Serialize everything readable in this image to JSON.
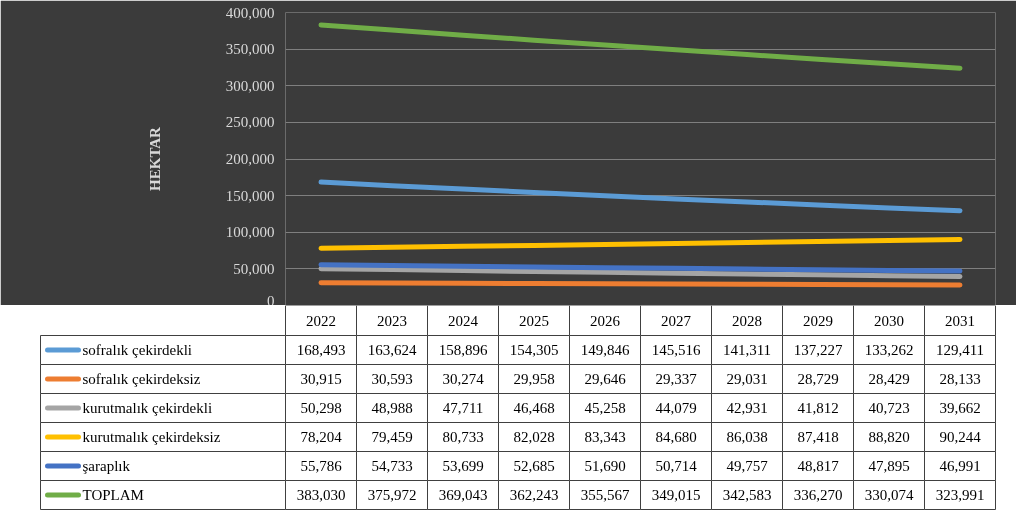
{
  "chart_data": {
    "type": "line",
    "ylabel": "HEKTAR",
    "categories": [
      "2022",
      "2023",
      "2024",
      "2025",
      "2026",
      "2027",
      "2028",
      "2029",
      "2030",
      "2031"
    ],
    "value_labels": [
      [
        "168,493",
        "163,624",
        "158,896",
        "154,305",
        "149,846",
        "145,516",
        "141,311",
        "137,227",
        "133,262",
        "129,411"
      ],
      [
        "30,915",
        "30,593",
        "30,274",
        "29,958",
        "29,646",
        "29,337",
        "29,031",
        "28,729",
        "28,429",
        "28,133"
      ],
      [
        "50,298",
        "48,988",
        "47,711",
        "46,468",
        "45,258",
        "44,079",
        "42,931",
        "41,812",
        "40,723",
        "39,662"
      ],
      [
        "78,204",
        "79,459",
        "80,733",
        "82,028",
        "83,343",
        "84,680",
        "86,038",
        "87,418",
        "88,820",
        "90,244"
      ],
      [
        "55,786",
        "54,733",
        "53,699",
        "52,685",
        "51,690",
        "50,714",
        "49,757",
        "48,817",
        "47,895",
        "46,991"
      ],
      [
        "383,030",
        "375,972",
        "369,043",
        "362,243",
        "355,567",
        "349,015",
        "342,583",
        "336,270",
        "330,074",
        "323,991"
      ]
    ],
    "series": [
      {
        "name": "sofralık çekirdekli",
        "color": "#5b9bd5",
        "values": [
          168493,
          163624,
          158896,
          154305,
          149846,
          145516,
          141311,
          137227,
          133262,
          129411
        ]
      },
      {
        "name": "sofralık çekirdeksiz",
        "color": "#ed7d31",
        "values": [
          30915,
          30593,
          30274,
          29958,
          29646,
          29337,
          29031,
          28729,
          28429,
          28133
        ]
      },
      {
        "name": "kurutmalık çekirdekli",
        "color": "#a5a5a5",
        "values": [
          50298,
          48988,
          47711,
          46468,
          45258,
          44079,
          42931,
          41812,
          40723,
          39662
        ]
      },
      {
        "name": "kurutmalık çekirdeksiz",
        "color": "#ffc000",
        "values": [
          78204,
          79459,
          80733,
          82028,
          83343,
          84680,
          86038,
          87418,
          88820,
          90244
        ]
      },
      {
        "name": "şaraplık",
        "color": "#4472c4",
        "values": [
          55786,
          54733,
          53699,
          52685,
          51690,
          50714,
          49757,
          48817,
          47895,
          46991
        ]
      },
      {
        "name": "TOPLAM",
        "color": "#70ad47",
        "values": [
          383030,
          375972,
          369043,
          362243,
          355567,
          349015,
          342583,
          336270,
          330074,
          323991
        ]
      }
    ],
    "ylim": [
      0,
      400000
    ],
    "yticks": [
      0,
      {
        "value": 50000,
        "label": "50,000"
      },
      {
        "value": 100000,
        "label": "100,000"
      },
      {
        "value": 150000,
        "label": "150,000"
      },
      {
        "value": 200000,
        "label": "200,000"
      },
      {
        "value": 250000,
        "label": "250,000"
      },
      {
        "value": 300000,
        "label": "300,000"
      },
      {
        "value": 350000,
        "label": "350,000"
      },
      {
        "value": 400000,
        "label": "400,000"
      }
    ],
    "grid": "y",
    "legend": "bottom",
    "marker": "none",
    "line_style": "solid"
  }
}
